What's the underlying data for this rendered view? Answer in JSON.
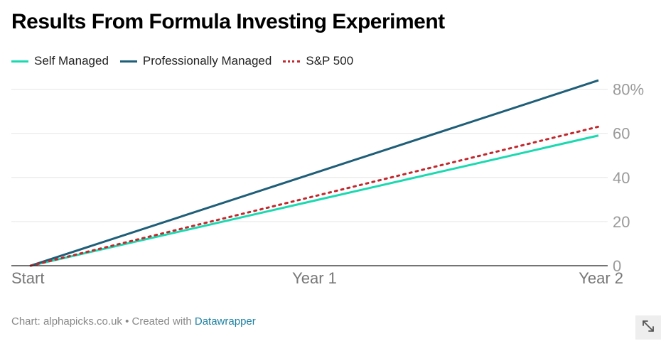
{
  "chart_data": {
    "type": "line",
    "title": "Results From Formula Investing Experiment",
    "x": [
      "Start",
      "Year 1",
      "Year 2"
    ],
    "series": [
      {
        "name": "Self Managed",
        "values": [
          0,
          29.5,
          59
        ],
        "color": "#1ad9b0",
        "style": "solid"
      },
      {
        "name": "Professionally Managed",
        "values": [
          0,
          42,
          84
        ],
        "color": "#1e5e78",
        "style": "solid"
      },
      {
        "name": "S&P 500",
        "values": [
          0,
          31.5,
          63
        ],
        "color": "#c0282d",
        "style": "dotted"
      }
    ],
    "yticks": [
      0,
      20,
      40,
      60,
      80
    ],
    "ytick_labels": [
      "0",
      "20",
      "40",
      "60",
      "80%"
    ],
    "ylim": [
      0,
      85
    ],
    "xlabel": "",
    "ylabel": "",
    "grid": true,
    "legend_position": "top-left"
  },
  "footer": {
    "prefix": "Chart: alphapicks.co.uk • Created with ",
    "link": "Datawrapper"
  },
  "expand_icon": "expand-arrows-icon"
}
